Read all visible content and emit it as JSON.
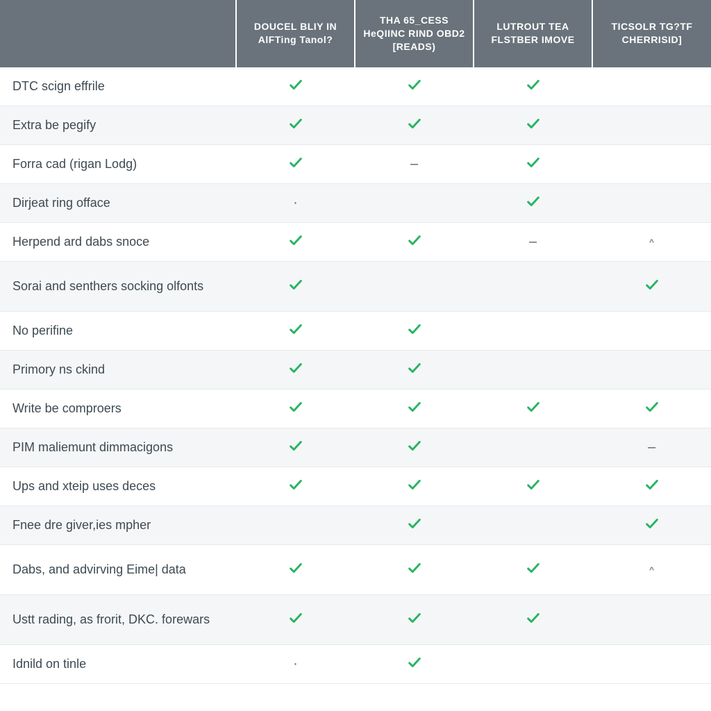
{
  "colors": {
    "header_bg": "#6a737b",
    "header_text": "#ffffff",
    "row_alt_bg": "#f5f6f7",
    "row_bg": "#ffffff",
    "border": "#e6e9eb",
    "text": "#3d4a52",
    "check_green": "#28b463",
    "dash": "#5a6268"
  },
  "typography": {
    "header_fontsize": 14,
    "header_weight": 600,
    "body_fontsize": 18
  },
  "table": {
    "type": "table",
    "feature_col_width": 340,
    "data_col_width": 171,
    "columns": [
      "",
      "DOUCEL BLIY IN AlFTing Tanol?",
      "THA 65_CESS HeQIINC RIND OBD2 [READS)",
      "LUTROUT TEA FLSTBER IMOVE",
      "TICSOLR TG?TF CHERRISID]"
    ],
    "cell_values": {
      "check": "check",
      "dash": "–",
      "dot": "·",
      "caret": "^",
      "empty": ""
    },
    "rows": [
      {
        "label": "DTC scign effrile",
        "c": [
          "check",
          "check",
          "check",
          "empty"
        ],
        "tall": false
      },
      {
        "label": "Extra be pegify",
        "c": [
          "check",
          "check",
          "check",
          "empty"
        ],
        "tall": false
      },
      {
        "label": "Forra cad (rigan Lodg)",
        "c": [
          "check",
          "dash",
          "check",
          "empty"
        ],
        "tall": false
      },
      {
        "label": "Dirjeat ring offace",
        "c": [
          "dot",
          "empty",
          "check",
          "empty"
        ],
        "tall": false
      },
      {
        "label": "Herpend ard dabs snoce",
        "c": [
          "check",
          "check",
          "dash",
          "caret"
        ],
        "tall": false
      },
      {
        "label": "Sorai and senthers socking olfonts",
        "c": [
          "check",
          "empty",
          "empty",
          "check"
        ],
        "tall": true
      },
      {
        "label": "No perifine",
        "c": [
          "check",
          "check",
          "empty",
          "empty"
        ],
        "tall": false
      },
      {
        "label": "Primory ns ckind",
        "c": [
          "check",
          "check",
          "empty",
          "empty"
        ],
        "tall": false
      },
      {
        "label": "Write be comproers",
        "c": [
          "check",
          "check",
          "check",
          "check"
        ],
        "tall": false
      },
      {
        "label": "PIM maliemunt dimmacigons",
        "c": [
          "check",
          "check",
          "empty",
          "dash"
        ],
        "tall": false
      },
      {
        "label": "Ups and xteip uses deces",
        "c": [
          "check",
          "check",
          "check",
          "check"
        ],
        "tall": false
      },
      {
        "label": "Fnee dre giver,ies mpher",
        "c": [
          "empty",
          "check",
          "empty",
          "check"
        ],
        "tall": false
      },
      {
        "label": "Dabs, and advirving Eime| data",
        "c": [
          "check",
          "check",
          "check",
          "caret"
        ],
        "tall": true
      },
      {
        "label": "Ustt rading, as frorit, DKC. forewars",
        "c": [
          "check",
          "check",
          "check",
          "empty"
        ],
        "tall": true
      },
      {
        "label": "Idnild on tinle",
        "c": [
          "dot",
          "check",
          "empty",
          "empty"
        ],
        "tall": false
      }
    ]
  }
}
